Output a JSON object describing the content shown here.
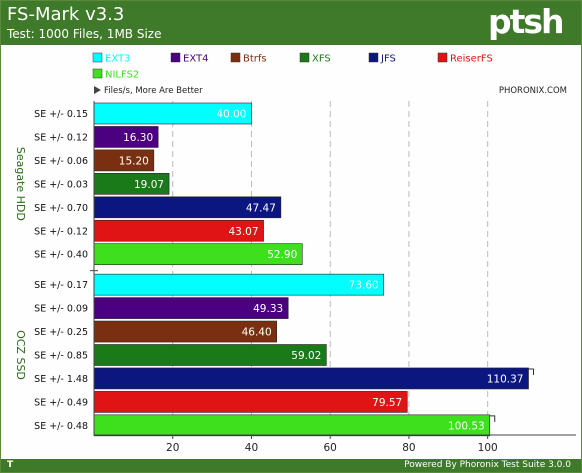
{
  "header": {
    "title": "FS-Mark v3.3",
    "subtitle": "Test: 1000 Files, 1MB Size",
    "logo": "ptsh"
  },
  "footer": {
    "left": "T",
    "right": "Powered By Phoronix Test Suite 3.0.0"
  },
  "notes": {
    "direction": "Files/s, More Are Better",
    "brand": "PHORONIX.COM"
  },
  "colors": {
    "header_bg": "#3f7a2a",
    "EXT3": "#00ffff",
    "EXT4": "#4b0082",
    "Btrfs": "#7a3010",
    "XFS": "#1a7a1a",
    "JFS": "#0c1680",
    "ReiserFS": "#e01414",
    "NILFS2": "#3ee01e"
  },
  "chart_data": {
    "type": "bar",
    "orientation": "horizontal",
    "title": "FS-Mark v3.3",
    "subtitle": "Test: 1000 Files, 1MB Size",
    "xlabel": "Files/s, More Are Better",
    "xlim": [
      0,
      115
    ],
    "xticks": [
      20,
      40,
      60,
      80,
      100
    ],
    "grid": true,
    "legend": [
      "EXT3",
      "EXT4",
      "Btrfs",
      "XFS",
      "JFS",
      "ReiserFS",
      "NILFS2"
    ],
    "groups": [
      {
        "name": "Seagate HDD",
        "bars": [
          {
            "series": "EXT3",
            "value": 40.0,
            "label": "40.00",
            "se": "SE +/- 0.15"
          },
          {
            "series": "EXT4",
            "value": 16.3,
            "label": "16.30",
            "se": "SE +/- 0.12"
          },
          {
            "series": "Btrfs",
            "value": 15.2,
            "label": "15.20",
            "se": "SE +/- 0.06"
          },
          {
            "series": "XFS",
            "value": 19.07,
            "label": "19.07",
            "se": "SE +/- 0.03"
          },
          {
            "series": "JFS",
            "value": 47.47,
            "label": "47.47",
            "se": "SE +/- 0.70"
          },
          {
            "series": "ReiserFS",
            "value": 43.07,
            "label": "43.07",
            "se": "SE +/- 0.12"
          },
          {
            "series": "NILFS2",
            "value": 52.9,
            "label": "52.90",
            "se": "SE +/- 0.40"
          }
        ]
      },
      {
        "name": "OCZ SSD",
        "bars": [
          {
            "series": "EXT3",
            "value": 73.6,
            "label": "73.60",
            "se": "SE +/- 0.17"
          },
          {
            "series": "EXT4",
            "value": 49.33,
            "label": "49.33",
            "se": "SE +/- 0.09"
          },
          {
            "series": "Btrfs",
            "value": 46.4,
            "label": "46.40",
            "se": "SE +/- 0.25"
          },
          {
            "series": "XFS",
            "value": 59.02,
            "label": "59.02",
            "se": "SE +/- 0.85"
          },
          {
            "series": "JFS",
            "value": 110.37,
            "label": "110.37",
            "se": "SE +/- 1.48"
          },
          {
            "series": "ReiserFS",
            "value": 79.57,
            "label": "79.57",
            "se": "SE +/- 0.49"
          },
          {
            "series": "NILFS2",
            "value": 100.53,
            "label": "100.53",
            "se": "SE +/- 0.48"
          }
        ]
      }
    ]
  }
}
